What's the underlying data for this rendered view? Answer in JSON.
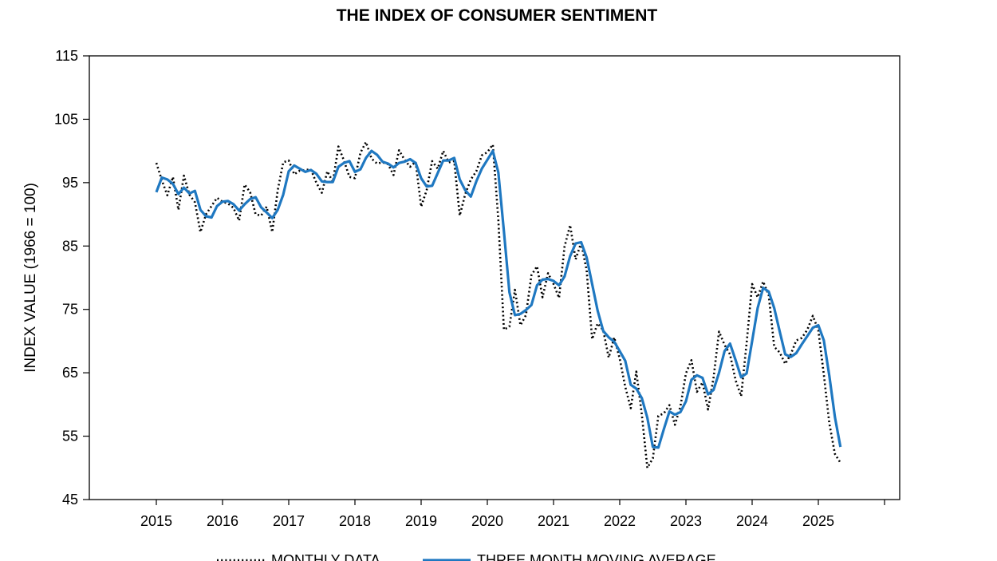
{
  "chart_data": {
    "type": "line",
    "title": "THE INDEX OF CONSUMER SENTIMENT",
    "xlabel": "",
    "ylabel": "INDEX VALUE (1966 = 100)",
    "ylim": [
      45,
      115
    ],
    "yticks": [
      45,
      55,
      65,
      75,
      85,
      95,
      105,
      115
    ],
    "xlim": [
      2014,
      2026
    ],
    "xticks": [
      2015,
      2016,
      2017,
      2018,
      2019,
      2020,
      2021,
      2022,
      2023,
      2024,
      2025
    ],
    "grid": false,
    "legend_position": "bottom",
    "series": [
      {
        "name": "MONTHLY DATA",
        "color": "#000000",
        "style": "dotted",
        "start": "2015-01",
        "values": [
          98.1,
          95.4,
          93.0,
          95.9,
          90.7,
          96.1,
          93.1,
          91.9,
          87.2,
          90.0,
          91.3,
          92.6,
          92.0,
          91.7,
          91.0,
          89.0,
          94.7,
          93.5,
          90.0,
          89.8,
          91.2,
          87.2,
          93.8,
          98.2,
          98.5,
          96.3,
          96.9,
          97.0,
          97.1,
          95.0,
          93.4,
          96.8,
          95.1,
          100.7,
          98.5,
          95.9,
          95.7,
          99.7,
          101.4,
          98.8,
          98.0,
          98.2,
          97.9,
          96.2,
          100.1,
          98.6,
          97.5,
          98.3,
          91.2,
          93.8,
          98.4,
          97.2,
          100.0,
          98.2,
          98.4,
          89.8,
          93.2,
          95.5,
          96.8,
          99.3,
          99.8,
          101.0,
          89.1,
          71.8,
          72.3,
          78.1,
          72.5,
          74.1,
          80.4,
          81.8,
          76.9,
          80.7,
          79.0,
          76.8,
          84.9,
          88.3,
          82.9,
          85.5,
          81.2,
          70.3,
          72.8,
          71.7,
          67.4,
          70.6,
          67.2,
          62.8,
          59.4,
          65.2,
          58.4,
          50.0,
          51.5,
          58.2,
          58.6,
          59.9,
          56.8,
          59.7,
          64.9,
          67.0,
          62.0,
          63.5,
          59.2,
          64.2,
          71.5,
          69.4,
          67.9,
          63.8,
          61.3,
          69.7,
          79.0,
          76.9,
          79.4,
          77.2,
          69.1,
          68.2,
          66.4,
          67.9,
          70.1,
          70.5,
          71.8,
          74.0,
          71.7,
          64.7,
          57.0,
          52.2,
          50.8
        ]
      },
      {
        "name": "THREE MONTH MOVING AVERAGE",
        "color": "#1f78c1",
        "style": "solid",
        "start": "2015-01",
        "values": [
          93.5,
          95.8,
          95.5,
          94.8,
          93.2,
          94.2,
          93.3,
          93.7,
          90.7,
          89.7,
          89.5,
          91.3,
          92.0,
          92.1,
          91.6,
          90.6,
          91.6,
          92.4,
          92.7,
          91.1,
          90.3,
          89.4,
          90.7,
          93.1,
          96.8,
          97.7,
          97.2,
          96.7,
          97.0,
          96.4,
          95.2,
          95.1,
          95.1,
          97.5,
          98.1,
          98.4,
          96.7,
          97.1,
          98.9,
          100.0,
          99.4,
          98.3,
          98.0,
          97.4,
          98.1,
          98.3,
          98.7,
          98.1,
          95.7,
          94.4,
          94.5,
          96.5,
          98.5,
          98.5,
          98.9,
          95.5,
          93.8,
          92.8,
          95.2,
          97.2,
          98.6,
          100.0,
          96.6,
          87.3,
          77.7,
          74.1,
          74.3,
          74.9,
          75.7,
          78.8,
          79.7,
          79.8,
          79.5,
          78.8,
          80.2,
          83.4,
          85.4,
          85.6,
          83.2,
          79.0,
          74.8,
          71.6,
          70.6,
          69.9,
          68.4,
          66.9,
          63.1,
          62.5,
          61.0,
          57.9,
          53.3,
          53.2,
          56.1,
          58.9,
          58.4,
          58.8,
          60.5,
          63.9,
          64.6,
          64.2,
          61.6,
          62.3,
          65.0,
          68.4,
          69.6,
          67.0,
          64.3,
          64.9,
          70.0,
          75.2,
          78.4,
          77.8,
          75.2,
          71.5,
          67.9,
          67.5,
          68.1,
          69.5,
          70.8,
          72.1,
          72.5,
          70.1,
          64.5,
          58.0,
          53.3
        ]
      }
    ]
  }
}
